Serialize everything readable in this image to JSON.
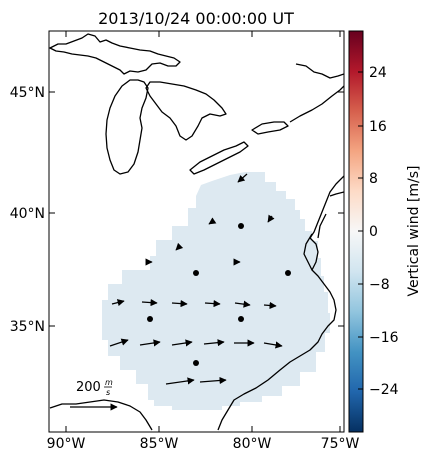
{
  "title": "2013/10/24 00:00:00 UT",
  "map": {
    "x_ticks": [
      "90°W",
      "85°W",
      "80°W",
      "75°W"
    ],
    "y_ticks": [
      "45°N",
      "40°N",
      "35°N"
    ],
    "region_fill": "#dde9f1",
    "coast_color": "#000000"
  },
  "scale_label": "200",
  "scale_unit_num": "m",
  "scale_unit_den": "s",
  "colorbar": {
    "label": "Vertical wind [m/s]",
    "ticks": [
      "24",
      "16",
      "8",
      "0",
      "−8",
      "−16",
      "−24"
    ],
    "range": [
      -30,
      30
    ],
    "colors": [
      "#053061",
      "#2166ac",
      "#4393c3",
      "#92c5de",
      "#d1e5f0",
      "#f7f7f7",
      "#fddbc7",
      "#f4a582",
      "#d6604d",
      "#b2182b",
      "#67001f"
    ]
  }
}
